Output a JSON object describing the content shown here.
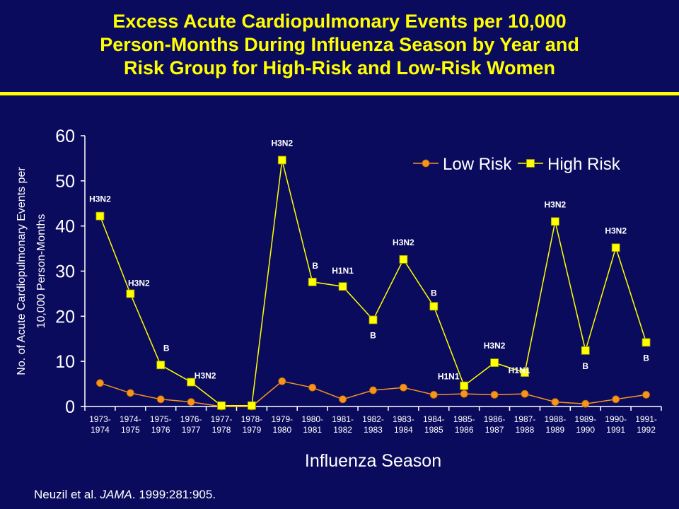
{
  "title_lines": [
    "Excess Acute Cardiopulmonary Events per 10,000",
    "Person-Months During Influenza Season by Year and",
    "Risk Group for High-Risk and Low-Risk Women"
  ],
  "citation": {
    "authors": "Neuzil et al. ",
    "journal": "JAMA",
    "ref": ". 1999:281:905."
  },
  "colors": {
    "background": "#0b0b5e",
    "title": "#ffff00",
    "low_risk": "#f7941d",
    "high_risk": "#ffff00",
    "text": "#ffffff"
  },
  "chart_data": {
    "type": "line",
    "xlabel": "Influenza Season",
    "ylabel_lines": [
      "No. of Acute Cardiopulmonary Events per",
      "10,000 Person-Months"
    ],
    "ylim": [
      0,
      60
    ],
    "yticks": [
      0,
      10,
      20,
      30,
      40,
      50,
      60
    ],
    "grid": false,
    "legend_position": "top-right",
    "categories": [
      [
        "1973-",
        "1974"
      ],
      [
        "1974-",
        "1975"
      ],
      [
        "1975-",
        "1976"
      ],
      [
        "1976-",
        "1977"
      ],
      [
        "1977-",
        "1978"
      ],
      [
        "1978-",
        "1979"
      ],
      [
        "1979-",
        "1980"
      ],
      [
        "1980-",
        "1981"
      ],
      [
        "1981-",
        "1982"
      ],
      [
        "1982-",
        "1983"
      ],
      [
        "1983-",
        "1984"
      ],
      [
        "1984-",
        "1985"
      ],
      [
        "1985-",
        "1986"
      ],
      [
        "1986-",
        "1987"
      ],
      [
        "1987-",
        "1988"
      ],
      [
        "1988-",
        "1989"
      ],
      [
        "1989-",
        "1990"
      ],
      [
        "1990-",
        "1991"
      ],
      [
        "1991-",
        "1992"
      ]
    ],
    "series": [
      {
        "name": "Low Risk",
        "marker": "circle",
        "color": "#f7941d",
        "values": [
          5.2,
          3.0,
          1.6,
          1.0,
          0.0,
          0.0,
          5.6,
          4.2,
          1.6,
          3.6,
          4.2,
          2.6,
          2.8,
          2.6,
          2.8,
          1.0,
          0.6,
          1.6,
          2.6
        ]
      },
      {
        "name": "High Risk",
        "marker": "square",
        "color": "#ffff00",
        "values": [
          42.2,
          25.0,
          9.2,
          5.4,
          0.2,
          0.2,
          54.6,
          27.6,
          26.6,
          19.2,
          32.6,
          22.2,
          4.6,
          9.7,
          7.5,
          41.0,
          12.4,
          35.2,
          14.2
        ]
      }
    ],
    "annotations": [
      "H3N2",
      "H3N2",
      "B",
      "H3N2",
      "",
      "",
      "H3N2",
      "B",
      "H1N1",
      "B",
      "H3N2",
      "B",
      "H1N1",
      "H3N2",
      "H1N1",
      "H3N2",
      "B",
      "H3N2",
      "B"
    ]
  }
}
